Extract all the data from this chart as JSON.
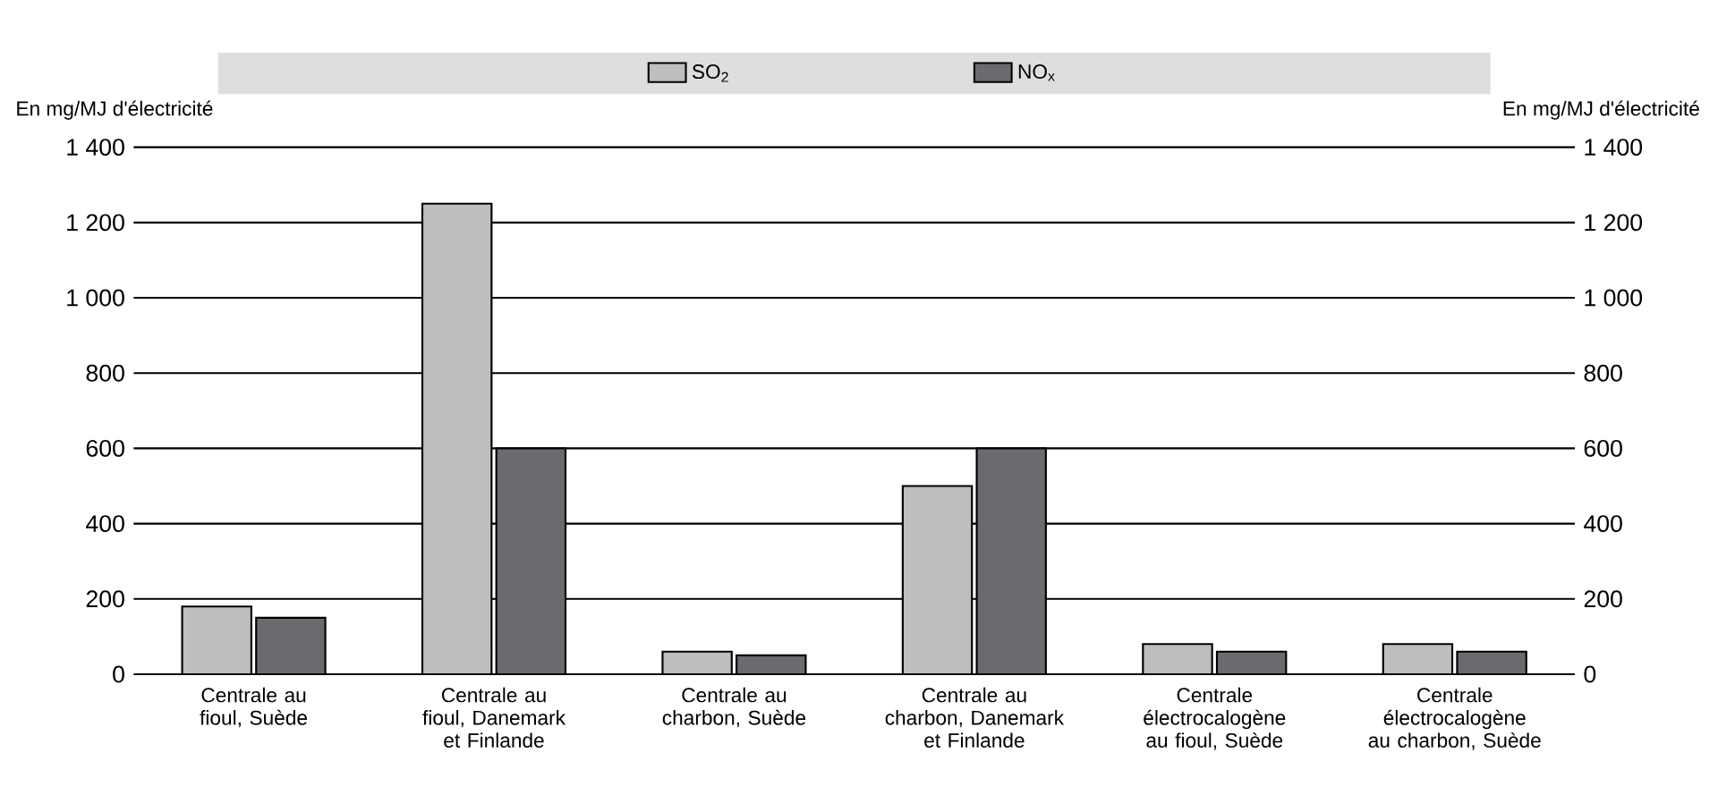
{
  "chart_data": {
    "type": "bar",
    "ylabel": "En mg/MJ d'électricité",
    "y2label": "En mg/MJ d'électricité",
    "categories": [
      "Centrale au fioul, Suède",
      "Centrale au fioul, Danemark et Finlande",
      "Centrale au charbon, Suède",
      "Centrale au charbon, Danemark et Finlande",
      "Centrale électrocalogène au fioul, Suède",
      "Centrale électrocalogène au charbon, Suède"
    ],
    "series": [
      {
        "name": "SO$_{2}$",
        "color": "#bdbec0",
        "values": [
          180,
          1250,
          60,
          500,
          80,
          80
        ]
      },
      {
        "name": "NO$_{x}$",
        "color": "#6a6b6e",
        "values": [
          150,
          600,
          50,
          600,
          60,
          60
        ]
      }
    ],
    "ylim": [
      0,
      1400
    ],
    "yticks": [
      0,
      200,
      400,
      600,
      800,
      {
        "value": 1000,
        "label": "1 000"
      },
      {
        "value": 1200,
        "label": "1 200"
      },
      {
        "value": 1400,
        "label": "1 400"
      }
    ],
    "y2lim": [
      0,
      1400
    ],
    "y2ticks": [
      0,
      200,
      400,
      600,
      800,
      {
        "value": 1000,
        "label": "1 000"
      },
      {
        "value": 1200,
        "label": "1 200"
      },
      {
        "value": 1400,
        "label": "1 400"
      }
    ],
    "grid": "y",
    "legend": "top"
  }
}
